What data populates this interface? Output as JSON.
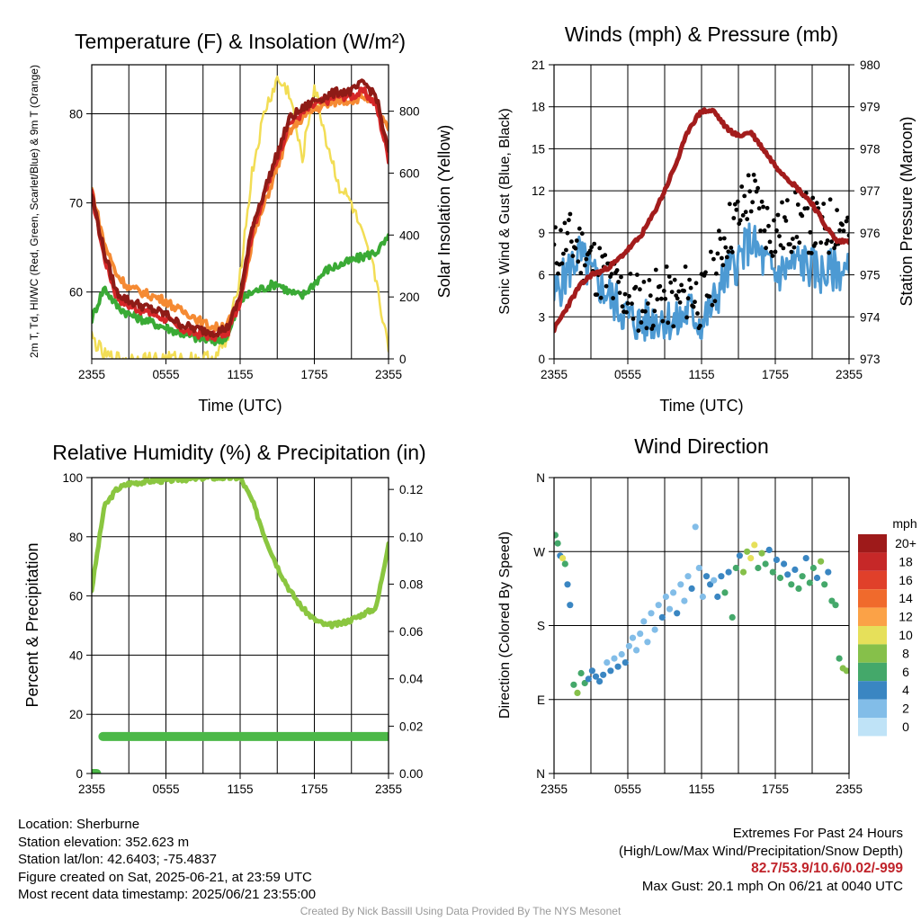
{
  "chart_data": [
    {
      "type": "line",
      "title": "Temperature (F) & Insolation (W/m²)",
      "xlabel": "Time (UTC)",
      "ylabel_left": "2m T, Td, HI/WC (Red, Green, Scarlet/Blue) & 9m T (Orange)",
      "ylabel_right": "Solar Insolation (Yellow)",
      "x_ticks": [
        "2355",
        "0555",
        "1155",
        "1755",
        "2355"
      ],
      "ylim_left": [
        52.5,
        85.5
      ],
      "yticks_left": [
        60,
        70,
        80
      ],
      "ylim_right": [
        0,
        950
      ],
      "yticks_right": [
        0,
        200,
        400,
        600,
        800
      ],
      "grid": true,
      "x_hours": [
        0,
        1,
        2,
        3,
        4,
        5,
        6,
        7,
        8,
        9,
        10,
        11,
        12,
        13,
        14,
        15,
        16,
        17,
        18,
        19,
        20,
        21,
        22,
        23,
        24
      ],
      "series": [
        {
          "name": "Temperature",
          "color": "#d62728",
          "axis": "left",
          "values": [
            71,
            64,
            59.5,
            58.5,
            58,
            57.5,
            57,
            56,
            55.5,
            55.2,
            55,
            55.5,
            59,
            67,
            71,
            75,
            79,
            80,
            81,
            81.5,
            82,
            82,
            82.5,
            81,
            75
          ]
        },
        {
          "name": "Dewpoint",
          "color": "#3aaa35",
          "axis": "left",
          "values": [
            57,
            60.5,
            58.5,
            57.5,
            57,
            56.5,
            56,
            55.5,
            55,
            54.7,
            54.5,
            55,
            59,
            60,
            60.5,
            61,
            60,
            59.5,
            61,
            62.5,
            63,
            63.5,
            64,
            64.5,
            66
          ]
        },
        {
          "name": "Heat Index / Wind Chill",
          "color": "#8e1b16",
          "axis": "left",
          "values": [
            71,
            64.5,
            60,
            59,
            58.5,
            58,
            57.5,
            56.5,
            56,
            55.7,
            55.5,
            56,
            59.5,
            67.5,
            71.5,
            75.5,
            79.5,
            80.5,
            81.5,
            82,
            82.5,
            82.5,
            83.5,
            82,
            75.5
          ]
        },
        {
          "name": "9m Temperature",
          "color": "#f58a33",
          "axis": "left",
          "values": [
            71.5,
            65.5,
            62,
            60.5,
            60,
            59.5,
            59,
            58,
            57.5,
            56.5,
            56,
            56.5,
            59,
            66,
            70,
            74,
            78,
            79.5,
            80.5,
            81,
            81.5,
            81.5,
            82,
            81,
            78
          ]
        },
        {
          "name": "Solar Insolation",
          "color": "#f2dd55",
          "axis": "right",
          "values": [
            70,
            10,
            0,
            0,
            0,
            0,
            0,
            0,
            0,
            0,
            5,
            60,
            280,
            610,
            800,
            900,
            860,
            640,
            880,
            700,
            560,
            500,
            380,
            260,
            20
          ]
        }
      ]
    },
    {
      "type": "line",
      "title": "Winds (mph) & Pressure (mb)",
      "xlabel": "Time (UTC)",
      "ylabel_left": "Sonic Wind & Gust (Blue, Black)",
      "ylabel_right": "Station Pressure (Maroon)",
      "x_ticks": [
        "2355",
        "0555",
        "1155",
        "1755",
        "2355"
      ],
      "ylim_left": [
        0,
        21
      ],
      "yticks_left": [
        0,
        3,
        6,
        9,
        12,
        15,
        18,
        21
      ],
      "ylim_right": [
        973,
        980
      ],
      "yticks_right": [
        973,
        974,
        975,
        976,
        977,
        978,
        979,
        980
      ],
      "grid": true,
      "x_hours": [
        0,
        1,
        2,
        3,
        4,
        5,
        6,
        7,
        8,
        9,
        10,
        11,
        12,
        13,
        14,
        15,
        16,
        17,
        18,
        19,
        20,
        21,
        22,
        23,
        24
      ],
      "series": [
        {
          "name": "Sonic Wind",
          "color": "#4d9ad3",
          "axis": "left",
          "values": [
            4.5,
            6,
            7.5,
            6,
            5,
            4,
            3,
            2.5,
            2.8,
            3,
            2.5,
            3.5,
            2.5,
            4,
            6,
            7,
            8.5,
            7,
            6,
            6.5,
            7,
            6.5,
            6,
            6.5,
            6
          ]
        },
        {
          "name": "Sonic Gust",
          "color": "#000000",
          "axis": "left",
          "values": [
            7.5,
            8.5,
            8,
            7,
            6,
            5,
            4.5,
            4,
            4.2,
            4.5,
            4,
            5,
            4,
            6,
            9,
            10,
            12,
            10,
            9,
            9.5,
            10,
            9.5,
            9,
            10,
            9
          ]
        },
        {
          "name": "Station Pressure",
          "color": "#a31c1c",
          "axis": "right",
          "values": [
            973.7,
            974.2,
            974.7,
            975.0,
            975.1,
            975.3,
            975.6,
            975.9,
            976.4,
            977.0,
            977.7,
            978.5,
            978.9,
            978.9,
            978.5,
            978.3,
            978.4,
            978.0,
            977.6,
            977.3,
            977.0,
            976.7,
            976.2,
            975.8,
            975.8
          ]
        }
      ]
    },
    {
      "type": "line",
      "title": "Relative Humidity (%) & Precipitation (in)",
      "xlabel": "",
      "ylabel_left": "Percent & Precipitation",
      "x_ticks": [
        "2355",
        "0555",
        "1155",
        "1755",
        "2355"
      ],
      "ylim_left": [
        0,
        100
      ],
      "yticks_left": [
        0,
        20,
        40,
        60,
        80,
        100
      ],
      "ylim_right": [
        0,
        0.125
      ],
      "yticks_right_labels": [
        "0.00",
        "0.02",
        "0.04",
        "0.06",
        "0.08",
        "0.10",
        "0.12"
      ],
      "grid": true,
      "x_hours": [
        0,
        1,
        2,
        3,
        4,
        5,
        6,
        7,
        8,
        9,
        10,
        11,
        12,
        13,
        14,
        15,
        16,
        17,
        18,
        19,
        20,
        21,
        22,
        23,
        24
      ],
      "series": [
        {
          "name": "Relative Humidity",
          "color": "#8ac640",
          "axis": "left",
          "values": [
            62,
            90,
            96,
            98,
            98.5,
            99,
            99,
            99.5,
            99.5,
            100,
            100,
            100,
            100,
            92,
            80,
            70,
            62,
            56,
            52,
            50,
            50.5,
            52,
            54,
            56,
            78
          ]
        },
        {
          "name": "Precipitation",
          "color": "#4cb848",
          "axis": "left",
          "values": [
            0,
            12.5,
            12.5,
            12.5,
            12.5,
            12.5,
            12.5,
            12.5,
            12.5,
            12.5,
            12.5,
            12.5,
            12.5,
            12.5,
            12.5,
            12.5,
            12.5,
            12.5,
            12.5,
            12.5,
            12.5,
            12.5,
            12.5,
            12.5,
            12.5
          ]
        }
      ]
    },
    {
      "type": "scatter",
      "title": "Wind Direction",
      "ylabel_left": "Direction (Colored By Speed)",
      "x_ticks": [
        "2355",
        "0555",
        "1155",
        "1755",
        "2355"
      ],
      "y_ticks": [
        "N",
        "E",
        "S",
        "W",
        "N"
      ],
      "ylim": [
        0,
        360
      ],
      "colorbar": {
        "title": "mph",
        "labels": [
          "20+",
          "18",
          "16",
          "14",
          "12",
          "10",
          "8",
          "6",
          "4",
          "2",
          "0"
        ],
        "colors": [
          "#9e1a1a",
          "#c62828",
          "#e0402a",
          "#f06a2c",
          "#fba247",
          "#e6e05a",
          "#86c04a",
          "#44a86a",
          "#3a86c2",
          "#82bde8",
          "#bfe3f7"
        ]
      },
      "points": [
        [
          0.1,
          290,
          6
        ],
        [
          0.3,
          280,
          5
        ],
        [
          0.5,
          265,
          3
        ],
        [
          0.7,
          262,
          10
        ],
        [
          0.9,
          255,
          5
        ],
        [
          1.1,
          230,
          3
        ],
        [
          1.3,
          205,
          3
        ],
        [
          1.6,
          108,
          6
        ],
        [
          1.9,
          98,
          7
        ],
        [
          2.2,
          122,
          6
        ],
        [
          2.5,
          110,
          5
        ],
        [
          2.8,
          115,
          3
        ],
        [
          3.1,
          125,
          3
        ],
        [
          3.4,
          118,
          4
        ],
        [
          3.7,
          112,
          3
        ],
        [
          4.0,
          120,
          3
        ],
        [
          4.3,
          135,
          2
        ],
        [
          4.6,
          125,
          3
        ],
        [
          4.9,
          140,
          2
        ],
        [
          5.2,
          130,
          3
        ],
        [
          5.5,
          145,
          2
        ],
        [
          5.8,
          135,
          3
        ],
        [
          6.1,
          155,
          2
        ],
        [
          6.4,
          165,
          1
        ],
        [
          6.7,
          150,
          2
        ],
        [
          7.0,
          170,
          2
        ],
        [
          7.3,
          185,
          2
        ],
        [
          7.6,
          160,
          1
        ],
        [
          7.9,
          195,
          2
        ],
        [
          8.2,
          175,
          1
        ],
        [
          8.5,
          205,
          2
        ],
        [
          8.8,
          190,
          3
        ],
        [
          9.1,
          215,
          2
        ],
        [
          9.4,
          200,
          1
        ],
        [
          9.7,
          220,
          2
        ],
        [
          10.0,
          195,
          3
        ],
        [
          10.3,
          230,
          2
        ],
        [
          10.6,
          210,
          1
        ],
        [
          10.9,
          240,
          2
        ],
        [
          11.2,
          225,
          3
        ],
        [
          11.5,
          300,
          1
        ],
        [
          11.8,
          250,
          1
        ],
        [
          12.1,
          215,
          2
        ],
        [
          12.4,
          240,
          3
        ],
        [
          12.7,
          230,
          4
        ],
        [
          13.0,
          235,
          2
        ],
        [
          13.3,
          215,
          3
        ],
        [
          13.6,
          240,
          4
        ],
        [
          13.9,
          220,
          6
        ],
        [
          14.2,
          245,
          4
        ],
        [
          14.5,
          190,
          6
        ],
        [
          14.8,
          250,
          5
        ],
        [
          15.1,
          265,
          4
        ],
        [
          15.4,
          245,
          7
        ],
        [
          15.7,
          270,
          8
        ],
        [
          16.0,
          262,
          9
        ],
        [
          16.3,
          278,
          10
        ],
        [
          16.6,
          250,
          6
        ],
        [
          16.9,
          268,
          7
        ],
        [
          17.2,
          255,
          5
        ],
        [
          17.5,
          272,
          4
        ],
        [
          17.8,
          245,
          6
        ],
        [
          18.1,
          260,
          4
        ],
        [
          18.4,
          238,
          5
        ],
        [
          18.7,
          255,
          3
        ],
        [
          19.0,
          242,
          4
        ],
        [
          19.3,
          230,
          6
        ],
        [
          19.6,
          248,
          4
        ],
        [
          19.9,
          225,
          6
        ],
        [
          20.2,
          240,
          5
        ],
        [
          20.5,
          262,
          4
        ],
        [
          20.8,
          232,
          6
        ],
        [
          21.1,
          250,
          5
        ],
        [
          21.4,
          238,
          4
        ],
        [
          21.7,
          258,
          7
        ],
        [
          22.0,
          230,
          5
        ],
        [
          22.3,
          245,
          4
        ],
        [
          22.6,
          210,
          6
        ],
        [
          22.9,
          205,
          5
        ],
        [
          23.2,
          140,
          6
        ],
        [
          23.5,
          128,
          7
        ],
        [
          23.8,
          125,
          8
        ]
      ]
    }
  ],
  "info": {
    "location": "Location: Sherburne",
    "elevation": "Station elevation: 352.623 m",
    "latlon": "Station lat/lon: 42.6403; -75.4837",
    "created": "Figure created on Sat, 2025-06-21, at 23:59 UTC",
    "recent": "Most recent data timestamp: 2025/06/21 23:55:00",
    "extremes_title": "Extremes For Past 24 Hours",
    "extremes_subtitle": "(High/Low/Max Wind/Precipitation/Snow Depth)",
    "extremes_values": "82.7/53.9/10.6/0.02/-999",
    "max_gust": "Max Gust: 20.1 mph On 06/21 at 0040 UTC",
    "credit": "Created By Nick Bassill Using Data Provided By The NYS Mesonet"
  }
}
